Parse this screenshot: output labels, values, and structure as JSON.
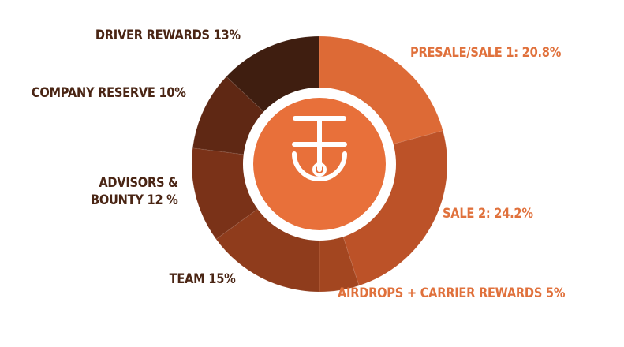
{
  "chart_data": {
    "type": "pie",
    "slices": [
      {
        "name": "PRESALE/SALE  1: 20.8%",
        "value": 20.8,
        "color": "#dd6a36"
      },
      {
        "name": "SALE 2: 24.2%",
        "value": 24.2,
        "color": "#bc5228"
      },
      {
        "name": "AIRDROPS + CARRIER REWARDS 5%",
        "value": 5,
        "color": "#a34620"
      },
      {
        "name": "TEAM 15%",
        "value": 15,
        "color": "#8f3c1c"
      },
      {
        "name": "ADVISORS & BOUNTY 12 %",
        "value": 12,
        "color": "#7a3218"
      },
      {
        "name": "COMPANY RESERVE 10%",
        "value": 10,
        "color": "#5f2814"
      },
      {
        "name": "DRIVER REWARDS 13%",
        "value": 13,
        "color": "#3f1e10"
      }
    ]
  },
  "labels": {
    "driver": "DRIVER REWARDS 13%",
    "company": "COMPANY RESERVE 10%",
    "advisors_line1": "ADVISORS &",
    "advisors_line2": "BOUNTY 12 %",
    "team": "TEAM 15%",
    "presale": "PRESALE/SALE  1: 20.8%",
    "sale2": "SALE 2: 24.2%",
    "airdrops": "AIRDROPS + CARRIER REWARDS 5%"
  },
  "center": {
    "logo_icon": "wheel-logo-icon",
    "circle_color": "#e8703a",
    "ring_color": "#ffffff"
  }
}
